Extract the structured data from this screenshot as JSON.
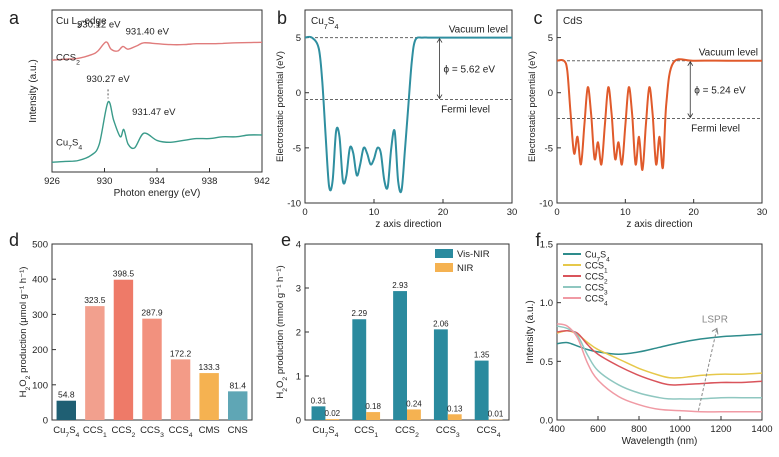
{
  "chart_data": [
    {
      "panel": "a",
      "type": "line",
      "annotation": "Cu L3-edge",
      "xlabel": "Photon energy (eV)",
      "ylabel": "Intensity (a.u.)",
      "xlim": [
        926,
        942
      ],
      "xticks": [
        926,
        930,
        934,
        938,
        942
      ],
      "series": [
        {
          "name": "CCS2",
          "color": "#e07c7c",
          "x": [
            926,
            927,
            928,
            929,
            929.5,
            930.12,
            930.5,
            931,
            931.4,
            931.8,
            932.5,
            933,
            934,
            935,
            936,
            937,
            938,
            939,
            940,
            941,
            942
          ],
          "y": [
            0.58,
            0.585,
            0.59,
            0.61,
            0.63,
            0.68,
            0.64,
            0.63,
            0.655,
            0.64,
            0.66,
            0.675,
            0.67,
            0.665,
            0.665,
            0.67,
            0.67,
            0.672,
            0.675,
            0.676,
            0.678
          ]
        },
        {
          "name": "Cu7S4",
          "color": "#3a9b8a",
          "x": [
            926,
            927,
            928,
            929,
            929.6,
            930.27,
            930.7,
            931.2,
            931.47,
            931.8,
            932.3,
            933,
            934,
            935,
            936,
            937,
            938,
            939,
            940,
            941,
            942
          ],
          "y": [
            0.02,
            0.025,
            0.03,
            0.06,
            0.12,
            0.35,
            0.25,
            0.16,
            0.2,
            0.12,
            0.1,
            0.18,
            0.14,
            0.13,
            0.14,
            0.15,
            0.15,
            0.16,
            0.16,
            0.17,
            0.17
          ]
        }
      ],
      "labels": [
        "930.12 eV",
        "931.40 eV",
        "930.27 eV",
        "931.47 eV"
      ],
      "series_labels": [
        "CCS2",
        "Cu7S4"
      ]
    },
    {
      "panel": "b",
      "type": "line",
      "annotation": "Cu7S4",
      "xlabel": "z axis direction",
      "ylabel": "Electrostatic potential (eV)",
      "xlim": [
        0,
        30
      ],
      "ylim": [
        -10,
        7.5
      ],
      "xticks": [
        0,
        10,
        20,
        30
      ],
      "yticks": [
        5,
        0,
        -5,
        -10
      ],
      "vacuum_level": 5.0,
      "fermi_level": -0.62,
      "work_function": "ϕ = 5.62 eV",
      "vacuum_label": "Vacuum level",
      "fermi_label": "Fermi level",
      "series": [
        {
          "name": "Cu7S4",
          "color": "#2f8fa0",
          "x": [
            0,
            1,
            2,
            2.5,
            3,
            3.5,
            4,
            4.5,
            5,
            5.5,
            6,
            6.5,
            7,
            7.5,
            8,
            8.5,
            9,
            9.5,
            10,
            10.5,
            11,
            11.5,
            12,
            12.5,
            13,
            13.5,
            14,
            14.5,
            15,
            15.5,
            16,
            17,
            18,
            20,
            25,
            30
          ],
          "y": [
            5,
            5,
            4,
            1,
            -4,
            -8.5,
            -8,
            -3.5,
            -4,
            -8,
            -7.5,
            -5,
            -5.5,
            -7.5,
            -6.5,
            -5,
            -5.5,
            -6.5,
            -6,
            -5,
            -5.5,
            -8,
            -8.5,
            -5,
            -3.5,
            -8,
            -8.8,
            -5,
            -1,
            3,
            4.8,
            5,
            5,
            5,
            5,
            5
          ]
        }
      ]
    },
    {
      "panel": "c",
      "type": "line",
      "annotation": "CdS",
      "xlabel": "z axis direction",
      "ylabel": "Electrostatic potential (eV)",
      "xlim": [
        0,
        30
      ],
      "ylim": [
        -10,
        7.5
      ],
      "xticks": [
        0,
        10,
        20,
        30
      ],
      "yticks": [
        5,
        0,
        -5,
        -10
      ],
      "vacuum_level": 2.9,
      "fermi_level": -2.34,
      "work_function": "ϕ = 5.24 eV",
      "vacuum_label": "Vacuum level",
      "fermi_label": "Fermi level",
      "series": [
        {
          "name": "CdS",
          "color": "#e05a2b",
          "x": [
            0,
            1,
            1.5,
            2,
            2.5,
            3,
            3.5,
            4,
            4.5,
            5,
            5.5,
            6,
            6.5,
            7,
            7.5,
            8,
            8.5,
            9,
            9.5,
            10,
            10.5,
            11,
            11.5,
            12,
            12.5,
            13,
            13.5,
            14,
            14.5,
            15,
            15.5,
            16,
            17,
            20,
            25,
            30
          ],
          "y": [
            2.9,
            2.9,
            2,
            -2,
            -5.5,
            -4,
            -6.5,
            -3,
            0.5,
            -2,
            -6,
            -4.5,
            -6.5,
            -3,
            0.5,
            -2,
            -6,
            -4.5,
            -6.5,
            -3,
            0.5,
            -2,
            -6.5,
            -4,
            -7,
            -3,
            0.5,
            -2,
            -6.5,
            -4,
            -6.8,
            -1,
            2.7,
            2.9,
            2.9,
            2.9
          ]
        }
      ]
    },
    {
      "panel": "d",
      "type": "bar",
      "xlabel": "",
      "ylabel": "H2O2 production (μmol g⁻¹ h⁻¹)",
      "ylim": [
        0,
        500
      ],
      "yticks": [
        0,
        100,
        200,
        300,
        400,
        500
      ],
      "categories": [
        "Cu7S4",
        "CCS1",
        "CCS2",
        "CCS3",
        "CCS4",
        "CMS",
        "CNS"
      ],
      "values": [
        54.8,
        323.5,
        398.5,
        287.9,
        172.2,
        133.3,
        81.4
      ],
      "value_labels": [
        "54.8",
        "323.5",
        "398.5",
        "287.9",
        "172.2",
        "133.3",
        "81.4"
      ],
      "colors": [
        "#1f5f73",
        "#f2a08e",
        "#ee7a68",
        "#f2917e",
        "#f39b87",
        "#f5b251",
        "#5fa6b5"
      ]
    },
    {
      "panel": "e",
      "type": "bar",
      "xlabel": "",
      "ylabel": "H2O2 production (mmol g⁻¹ h⁻¹)",
      "ylim": [
        0,
        4
      ],
      "yticks": [
        0,
        1,
        2,
        3,
        4
      ],
      "categories": [
        "Cu7S4",
        "CCS1",
        "CCS2",
        "CCS3",
        "CCS4"
      ],
      "series": [
        {
          "name": "Vis-NIR",
          "color": "#2a8a9e",
          "values": [
            0.31,
            2.29,
            2.93,
            2.06,
            1.35
          ],
          "value_labels": [
            "0.31",
            "2.29",
            "2.93",
            "2.06",
            "1.35"
          ]
        },
        {
          "name": "NIR",
          "color": "#f5b251",
          "values": [
            0.02,
            0.18,
            0.24,
            0.13,
            0.01
          ],
          "value_labels": [
            "0.02",
            "0.18",
            "0.24",
            "0.13",
            "0.01"
          ]
        }
      ],
      "legend": "top-right"
    },
    {
      "panel": "f",
      "type": "line",
      "xlabel": "Wavelength (nm)",
      "ylabel": "Intensity (a.u.)",
      "xlim": [
        400,
        1400
      ],
      "ylim": [
        0,
        1.5
      ],
      "xticks": [
        400,
        600,
        800,
        1000,
        1200,
        1400
      ],
      "yticks": [
        0.0,
        0.5,
        1.0,
        1.5
      ],
      "annotation": "LSPR",
      "legend": "top-left",
      "series": [
        {
          "name": "Cu7S4",
          "color": "#2e8c8c",
          "x": [
            400,
            450,
            500,
            550,
            600,
            700,
            800,
            900,
            1000,
            1100,
            1200,
            1300,
            1400
          ],
          "y": [
            0.65,
            0.66,
            0.63,
            0.6,
            0.58,
            0.56,
            0.58,
            0.62,
            0.66,
            0.69,
            0.71,
            0.72,
            0.73
          ]
        },
        {
          "name": "CCS1",
          "color": "#e6c84a",
          "x": [
            400,
            450,
            500,
            550,
            600,
            700,
            800,
            900,
            950,
            1000,
            1050,
            1100,
            1200,
            1300,
            1400
          ],
          "y": [
            0.74,
            0.76,
            0.73,
            0.66,
            0.6,
            0.52,
            0.44,
            0.38,
            0.36,
            0.36,
            0.37,
            0.38,
            0.39,
            0.39,
            0.4
          ]
        },
        {
          "name": "CCS2",
          "color": "#d9545b",
          "x": [
            400,
            450,
            500,
            550,
            600,
            700,
            800,
            900,
            950,
            1000,
            1100,
            1200,
            1300,
            1400
          ],
          "y": [
            0.75,
            0.76,
            0.74,
            0.64,
            0.56,
            0.46,
            0.38,
            0.32,
            0.3,
            0.3,
            0.31,
            0.32,
            0.32,
            0.33
          ]
        },
        {
          "name": "CCS3",
          "color": "#8fc7c0",
          "x": [
            400,
            450,
            500,
            550,
            600,
            700,
            800,
            900,
            950,
            1000,
            1100,
            1200,
            1300,
            1400
          ],
          "y": [
            0.8,
            0.78,
            0.72,
            0.55,
            0.42,
            0.3,
            0.23,
            0.19,
            0.18,
            0.18,
            0.18,
            0.19,
            0.19,
            0.19
          ]
        },
        {
          "name": "CCS4",
          "color": "#f09aa4",
          "x": [
            400,
            450,
            500,
            550,
            600,
            700,
            800,
            900,
            1000,
            1100,
            1200,
            1300,
            1400
          ],
          "y": [
            0.82,
            0.8,
            0.7,
            0.48,
            0.34,
            0.2,
            0.13,
            0.09,
            0.08,
            0.07,
            0.07,
            0.07,
            0.07
          ]
        }
      ]
    }
  ],
  "panel_letters": [
    "a",
    "b",
    "c",
    "d",
    "e",
    "f"
  ]
}
